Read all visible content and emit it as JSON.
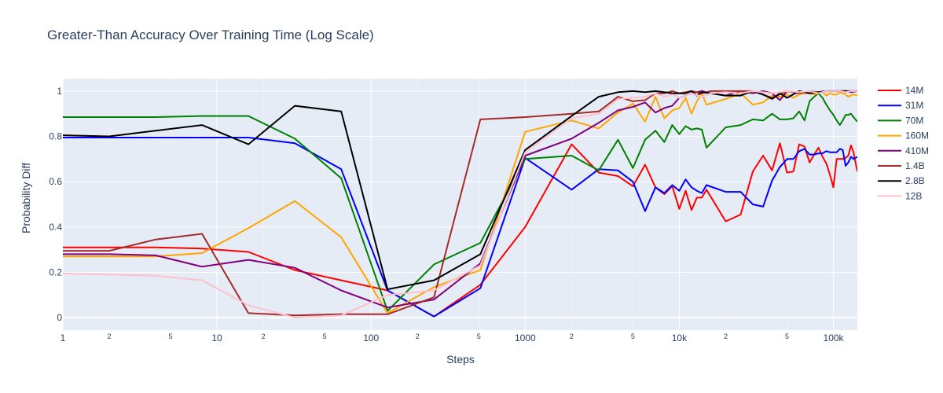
{
  "chart_data": {
    "type": "line",
    "title": "Greater-Than Accuracy Over Training Time (Log Scale)",
    "xlabel": "Steps",
    "ylabel": "Probability Diff",
    "xscale": "log",
    "xlim": [
      1,
      143000
    ],
    "ylim": [
      -0.055,
      1.055
    ],
    "x_major_ticks": [
      {
        "value": 1,
        "label": "1"
      },
      {
        "value": 10,
        "label": "10"
      },
      {
        "value": 100,
        "label": "100"
      },
      {
        "value": 1000,
        "label": "1000"
      },
      {
        "value": 10000,
        "label": "10k"
      },
      {
        "value": 100000,
        "label": "100k"
      }
    ],
    "x_minor_ticks": [
      {
        "value": 2,
        "label": "2"
      },
      {
        "value": 5,
        "label": "5"
      },
      {
        "value": 20,
        "label": "2"
      },
      {
        "value": 50,
        "label": "5"
      },
      {
        "value": 200,
        "label": "2"
      },
      {
        "value": 500,
        "label": "5"
      },
      {
        "value": 2000,
        "label": "2"
      },
      {
        "value": 5000,
        "label": "5"
      },
      {
        "value": 20000,
        "label": "2"
      },
      {
        "value": 50000,
        "label": "5"
      }
    ],
    "y_ticks": [
      {
        "value": 0,
        "label": "0"
      },
      {
        "value": 0.2,
        "label": "0.2"
      },
      {
        "value": 0.4,
        "label": "0.4"
      },
      {
        "value": 0.6,
        "label": "0.6"
      },
      {
        "value": 0.8,
        "label": "0.8"
      },
      {
        "value": 1,
        "label": "1"
      }
    ],
    "grid": true,
    "legend_position": "right",
    "colors": {
      "plot_bg": "#e5ecf6",
      "grid": "#ffffff",
      "text": "#2a3f5f"
    },
    "series": [
      {
        "name": "14M",
        "color": "#ff0000",
        "x": [
          1,
          2,
          4,
          8,
          16,
          32,
          64,
          128,
          256,
          512,
          1000,
          2000,
          3000,
          4000,
          5000,
          6000,
          7000,
          8000,
          9000,
          10000,
          11000,
          12000,
          13000,
          14000,
          15000,
          20000,
          25000,
          30000,
          35000,
          40000,
          45000,
          50000,
          55000,
          60000,
          65000,
          70000,
          75000,
          80000,
          85000,
          90000,
          95000,
          100000,
          105000,
          110000,
          115000,
          120000,
          125000,
          130000,
          135000,
          143000
        ],
        "y": [
          0.31,
          0.31,
          0.31,
          0.305,
          0.29,
          0.21,
          0.165,
          0.12,
          0.005,
          0.145,
          0.4,
          0.765,
          0.64,
          0.625,
          0.58,
          0.675,
          0.575,
          0.545,
          0.58,
          0.48,
          0.56,
          0.475,
          0.53,
          0.53,
          0.565,
          0.425,
          0.455,
          0.645,
          0.715,
          0.65,
          0.77,
          0.64,
          0.645,
          0.765,
          0.755,
          0.685,
          0.72,
          0.75,
          0.71,
          0.68,
          0.63,
          0.575,
          0.7,
          0.7,
          0.7,
          0.705,
          0.715,
          0.76,
          0.73,
          0.645
        ]
      },
      {
        "name": "31M",
        "color": "#0000ff",
        "x": [
          1,
          2,
          4,
          8,
          16,
          32,
          64,
          128,
          256,
          512,
          1000,
          2000,
          3000,
          4000,
          5000,
          6000,
          7000,
          8000,
          9000,
          10000,
          11000,
          12000,
          13000,
          14000,
          15000,
          20000,
          25000,
          30000,
          35000,
          40000,
          45000,
          50000,
          55000,
          60000,
          65000,
          70000,
          75000,
          80000,
          85000,
          90000,
          95000,
          100000,
          105000,
          110000,
          115000,
          120000,
          125000,
          130000,
          135000,
          143000
        ],
        "y": [
          0.795,
          0.795,
          0.795,
          0.795,
          0.795,
          0.77,
          0.655,
          0.12,
          0.005,
          0.13,
          0.705,
          0.565,
          0.655,
          0.65,
          0.6,
          0.47,
          0.575,
          0.55,
          0.585,
          0.56,
          0.61,
          0.575,
          0.56,
          0.55,
          0.585,
          0.555,
          0.555,
          0.5,
          0.49,
          0.605,
          0.665,
          0.7,
          0.7,
          0.735,
          0.745,
          0.72,
          0.72,
          0.725,
          0.725,
          0.735,
          0.73,
          0.73,
          0.73,
          0.745,
          0.74,
          0.67,
          0.685,
          0.71,
          0.7,
          0.71
        ]
      },
      {
        "name": "70M",
        "color": "#008000",
        "x": [
          1,
          2,
          4,
          8,
          16,
          32,
          64,
          128,
          256,
          512,
          1000,
          2000,
          3000,
          4000,
          5000,
          6000,
          7000,
          8000,
          9000,
          10000,
          11000,
          12000,
          13000,
          14000,
          15000,
          20000,
          25000,
          30000,
          35000,
          40000,
          45000,
          50000,
          55000,
          60000,
          65000,
          70000,
          75000,
          80000,
          85000,
          90000,
          95000,
          100000,
          105000,
          110000,
          115000,
          120000,
          125000,
          130000,
          135000,
          143000
        ],
        "y": [
          0.885,
          0.885,
          0.885,
          0.89,
          0.89,
          0.79,
          0.615,
          0.03,
          0.235,
          0.33,
          0.7,
          0.715,
          0.65,
          0.785,
          0.66,
          0.785,
          0.825,
          0.775,
          0.85,
          0.81,
          0.845,
          0.83,
          0.835,
          0.83,
          0.75,
          0.84,
          0.85,
          0.875,
          0.87,
          0.9,
          0.875,
          0.875,
          0.88,
          0.91,
          0.87,
          0.955,
          0.975,
          0.99,
          0.97,
          0.94,
          0.915,
          0.895,
          0.87,
          0.85,
          0.87,
          0.895,
          0.895,
          0.9,
          0.885,
          0.865
        ]
      },
      {
        "name": "160M",
        "color": "#ffa500",
        "x": [
          1,
          2,
          4,
          8,
          16,
          32,
          64,
          128,
          256,
          512,
          1000,
          2000,
          3000,
          4000,
          5000,
          6000,
          7000,
          8000,
          9000,
          10000,
          11000,
          12000,
          13000,
          14000,
          15000,
          20000,
          25000,
          30000,
          35000,
          40000,
          45000,
          50000,
          55000,
          60000,
          65000,
          70000,
          75000,
          80000,
          85000,
          90000,
          95000,
          100000,
          105000,
          110000,
          115000,
          120000,
          125000,
          130000,
          135000,
          143000
        ],
        "y": [
          0.27,
          0.27,
          0.27,
          0.285,
          0.395,
          0.515,
          0.355,
          0.02,
          0.135,
          0.21,
          0.82,
          0.87,
          0.835,
          0.905,
          0.945,
          0.865,
          0.975,
          0.88,
          0.915,
          0.925,
          0.97,
          0.9,
          0.955,
          0.99,
          0.94,
          0.965,
          0.99,
          0.94,
          0.95,
          0.98,
          0.975,
          0.985,
          0.97,
          0.985,
          0.99,
          0.99,
          0.985,
          0.99,
          0.995,
          0.98,
          0.99,
          0.985,
          0.985,
          0.995,
          0.99,
          0.985,
          0.975,
          0.98,
          0.985,
          0.98
        ]
      },
      {
        "name": "410M",
        "color": "#800080",
        "x": [
          1,
          2,
          4,
          8,
          16,
          32,
          64,
          128,
          256,
          512,
          1000,
          2000,
          3000,
          4000,
          5000,
          6000,
          7000,
          8000,
          9000,
          10000,
          12000,
          14000,
          16000,
          20000,
          25000,
          30000,
          35000,
          40000,
          45000,
          50000,
          60000,
          70000,
          80000,
          90000,
          100000,
          110000,
          120000,
          130000,
          143000
        ],
        "y": [
          0.28,
          0.28,
          0.275,
          0.225,
          0.255,
          0.22,
          0.12,
          0.045,
          0.08,
          0.24,
          0.715,
          0.79,
          0.86,
          0.915,
          0.93,
          0.95,
          0.905,
          0.925,
          0.935,
          0.97,
          0.99,
          1.0,
          0.99,
          0.98,
          1.0,
          0.99,
          1.0,
          0.99,
          0.96,
          1.0,
          0.99,
          1.0,
          0.99,
          1.0,
          1.0,
          1.0,
          1.0,
          0.995,
          1.0
        ]
      },
      {
        "name": "1.4B",
        "color": "#a52a2a",
        "x": [
          1,
          2,
          4,
          8,
          16,
          32,
          64,
          128,
          256,
          512,
          1000,
          2000,
          3000,
          4000,
          5000,
          6000,
          7000,
          8000,
          9000,
          10000,
          12000,
          14000,
          16000,
          20000,
          25000,
          30000,
          40000,
          50000,
          60000,
          70000,
          80000,
          90000,
          100000,
          110000,
          120000,
          130000,
          143000
        ],
        "y": [
          0.295,
          0.295,
          0.345,
          0.37,
          0.02,
          0.01,
          0.015,
          0.015,
          0.09,
          0.875,
          0.885,
          0.9,
          0.91,
          0.975,
          0.955,
          0.96,
          0.99,
          0.99,
          1.0,
          0.99,
          1.0,
          0.99,
          1.0,
          1.0,
          1.0,
          1.0,
          0.97,
          1.0,
          0.99,
          1.0,
          0.995,
          1.0,
          1.0,
          1.0,
          1.0,
          1.0,
          1.0
        ]
      },
      {
        "name": "2.8B",
        "color": "#000000",
        "x": [
          1,
          2,
          4,
          8,
          16,
          32,
          64,
          128,
          256,
          512,
          1000,
          2000,
          3000,
          4000,
          5000,
          6000,
          7000,
          8000,
          9000,
          10000,
          11000,
          12000,
          13000,
          14000,
          16000,
          20000,
          25000,
          30000,
          35000,
          40000,
          45000,
          50000,
          60000,
          70000,
          80000,
          90000,
          100000,
          110000,
          120000,
          130000,
          143000
        ],
        "y": [
          0.805,
          0.8,
          0.825,
          0.85,
          0.765,
          0.935,
          0.91,
          0.125,
          0.165,
          0.28,
          0.74,
          0.89,
          0.975,
          0.995,
          1.0,
          0.995,
          1.0,
          0.995,
          0.99,
          0.99,
          0.99,
          1.0,
          0.98,
          0.995,
          0.99,
          0.98,
          0.98,
          1.0,
          0.985,
          0.965,
          0.99,
          0.97,
          1.0,
          0.99,
          0.995,
          1.0,
          1.0,
          1.0,
          1.0,
          1.0,
          1.0
        ]
      },
      {
        "name": "12B",
        "color": "#ffc0cb",
        "x": [
          1,
          2,
          4,
          8,
          16,
          32,
          64,
          128,
          256,
          512,
          1000,
          2000,
          3000,
          4000,
          5000,
          6000,
          7000,
          8000,
          9000,
          10000,
          12000,
          14000,
          16000,
          20000,
          25000,
          30000,
          40000,
          50000,
          60000,
          70000,
          80000,
          90000,
          100000,
          110000,
          120000,
          130000,
          143000
        ],
        "y": [
          0.195,
          0.19,
          0.185,
          0.165,
          0.055,
          0.0,
          0.01,
          0.1,
          0.12,
          0.23,
          0.73,
          0.88,
          0.9,
          0.965,
          0.97,
          0.975,
          0.99,
          0.975,
          0.985,
          0.97,
          0.99,
          0.975,
          0.99,
          0.995,
          0.99,
          1.0,
          0.99,
          1.0,
          0.995,
          1.0,
          0.99,
          1.0,
          1.0,
          1.0,
          0.995,
          1.0,
          1.0
        ]
      }
    ]
  }
}
